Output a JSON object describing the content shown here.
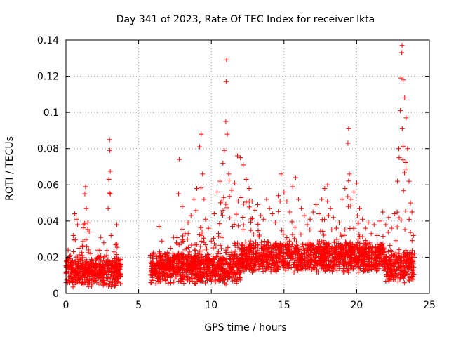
{
  "chart_data": {
    "type": "scatter",
    "title": "Day 341 of 2023, Rate Of TEC Index for receiver lkta",
    "xlabel": "GPS time / hours",
    "ylabel": "ROTI / TECUs",
    "xlim": [
      0,
      25
    ],
    "ylim": [
      0,
      0.14
    ],
    "xticks": [
      0,
      5,
      10,
      15,
      20,
      25
    ],
    "xtick_labels": [
      "0",
      "5",
      "10",
      "15",
      "20",
      "25"
    ],
    "yticks": [
      0,
      0.02,
      0.04,
      0.06,
      0.08,
      0.1,
      0.12,
      0.14
    ],
    "ytick_labels": [
      "0",
      "0.02",
      "0.04",
      "0.06",
      "0.08",
      "0.1",
      "0.12",
      "0.14"
    ],
    "grid": true,
    "marker": "+",
    "color": "#ff0000",
    "data_gap_hours": [
      3.8,
      5.8
    ],
    "series": [
      {
        "name": "ROTI",
        "points": [
          [
            0.05,
            0.012
          ],
          [
            0.1,
            0.018
          ],
          [
            0.15,
            0.024
          ],
          [
            0.2,
            0.015
          ],
          [
            0.3,
            0.021
          ],
          [
            0.4,
            0.017
          ],
          [
            0.5,
            0.032
          ],
          [
            0.6,
            0.044
          ],
          [
            0.7,
            0.041
          ],
          [
            0.8,
            0.038
          ],
          [
            0.9,
            0.025
          ],
          [
            1.0,
            0.019
          ],
          [
            1.1,
            0.015
          ],
          [
            1.2,
            0.038
          ],
          [
            1.3,
            0.055
          ],
          [
            1.35,
            0.059
          ],
          [
            1.4,
            0.047
          ],
          [
            1.5,
            0.039
          ],
          [
            1.6,
            0.034
          ],
          [
            1.7,
            0.022
          ],
          [
            1.8,
            0.017
          ],
          [
            2.0,
            0.013
          ],
          [
            2.2,
            0.024
          ],
          [
            2.4,
            0.031
          ],
          [
            2.6,
            0.028
          ],
          [
            2.8,
            0.021
          ],
          [
            2.9,
            0.047
          ],
          [
            2.95,
            0.063
          ],
          [
            3.0,
            0.085
          ],
          [
            3.02,
            0.079
          ],
          [
            3.05,
            0.055
          ],
          [
            3.1,
            0.032
          ],
          [
            3.3,
            0.023
          ],
          [
            3.5,
            0.038
          ],
          [
            3.6,
            0.019
          ],
          [
            3.7,
            0.014
          ],
          [
            6.0,
            0.012
          ],
          [
            6.2,
            0.021
          ],
          [
            6.4,
            0.037
          ],
          [
            6.6,
            0.029
          ],
          [
            6.8,
            0.022
          ],
          [
            7.0,
            0.018
          ],
          [
            7.2,
            0.025
          ],
          [
            7.4,
            0.031
          ],
          [
            7.6,
            0.028
          ],
          [
            7.8,
            0.074
          ],
          [
            8.0,
            0.048
          ],
          [
            8.2,
            0.033
          ],
          [
            8.4,
            0.039
          ],
          [
            8.6,
            0.043
          ],
          [
            8.8,
            0.052
          ],
          [
            9.0,
            0.058
          ],
          [
            9.2,
            0.081
          ],
          [
            9.3,
            0.088
          ],
          [
            9.4,
            0.066
          ],
          [
            9.5,
            0.052
          ],
          [
            9.6,
            0.041
          ],
          [
            9.8,
            0.036
          ],
          [
            10.0,
            0.029
          ],
          [
            10.2,
            0.044
          ],
          [
            10.4,
            0.056
          ],
          [
            10.6,
            0.062
          ],
          [
            10.8,
            0.072
          ],
          [
            10.9,
            0.079
          ],
          [
            11.0,
            0.095
          ],
          [
            11.02,
            0.117
          ],
          [
            11.05,
            0.129
          ],
          [
            11.1,
            0.088
          ],
          [
            11.2,
            0.066
          ],
          [
            11.4,
            0.057
          ],
          [
            11.6,
            0.061
          ],
          [
            11.8,
            0.076
          ],
          [
            12.0,
            0.075
          ],
          [
            12.2,
            0.071
          ],
          [
            12.4,
            0.063
          ],
          [
            12.6,
            0.058
          ],
          [
            12.8,
            0.051
          ],
          [
            13.0,
            0.046
          ],
          [
            13.2,
            0.049
          ],
          [
            13.4,
            0.043
          ],
          [
            13.6,
            0.041
          ],
          [
            13.8,
            0.052
          ],
          [
            14.0,
            0.047
          ],
          [
            14.2,
            0.044
          ],
          [
            14.4,
            0.039
          ],
          [
            14.6,
            0.054
          ],
          [
            14.8,
            0.066
          ],
          [
            15.0,
            0.056
          ],
          [
            15.2,
            0.051
          ],
          [
            15.4,
            0.045
          ],
          [
            15.6,
            0.059
          ],
          [
            15.8,
            0.064
          ],
          [
            16.0,
            0.052
          ],
          [
            16.2,
            0.047
          ],
          [
            16.4,
            0.043
          ],
          [
            16.6,
            0.038
          ],
          [
            16.8,
            0.041
          ],
          [
            17.0,
            0.045
          ],
          [
            17.2,
            0.049
          ],
          [
            17.4,
            0.044
          ],
          [
            17.6,
            0.052
          ],
          [
            17.8,
            0.058
          ],
          [
            18.0,
            0.06
          ],
          [
            18.2,
            0.047
          ],
          [
            18.4,
            0.042
          ],
          [
            18.6,
            0.036
          ],
          [
            18.8,
            0.039
          ],
          [
            19.0,
            0.052
          ],
          [
            19.2,
            0.058
          ],
          [
            19.4,
            0.083
          ],
          [
            19.45,
            0.091
          ],
          [
            19.5,
            0.066
          ],
          [
            19.6,
            0.052
          ],
          [
            19.8,
            0.056
          ],
          [
            20.0,
            0.061
          ],
          [
            20.2,
            0.047
          ],
          [
            20.4,
            0.041
          ],
          [
            20.6,
            0.036
          ],
          [
            20.8,
            0.039
          ],
          [
            21.0,
            0.033
          ],
          [
            21.2,
            0.038
          ],
          [
            21.4,
            0.032
          ],
          [
            21.6,
            0.04
          ],
          [
            21.8,
            0.045
          ],
          [
            22.0,
            0.038
          ],
          [
            22.2,
            0.042
          ],
          [
            22.4,
            0.036
          ],
          [
            22.6,
            0.044
          ],
          [
            22.8,
            0.062
          ],
          [
            22.9,
            0.08
          ],
          [
            23.0,
            0.101
          ],
          [
            23.05,
            0.119
          ],
          [
            23.1,
            0.133
          ],
          [
            23.12,
            0.137
          ],
          [
            23.2,
            0.118
          ],
          [
            23.3,
            0.108
          ],
          [
            23.4,
            0.097
          ],
          [
            23.5,
            0.08
          ],
          [
            23.6,
            0.062
          ],
          [
            23.7,
            0.05
          ],
          [
            23.8,
            0.045
          ],
          [
            23.9,
            0.032
          ],
          [
            24.0,
            0.02
          ]
        ]
      }
    ]
  }
}
